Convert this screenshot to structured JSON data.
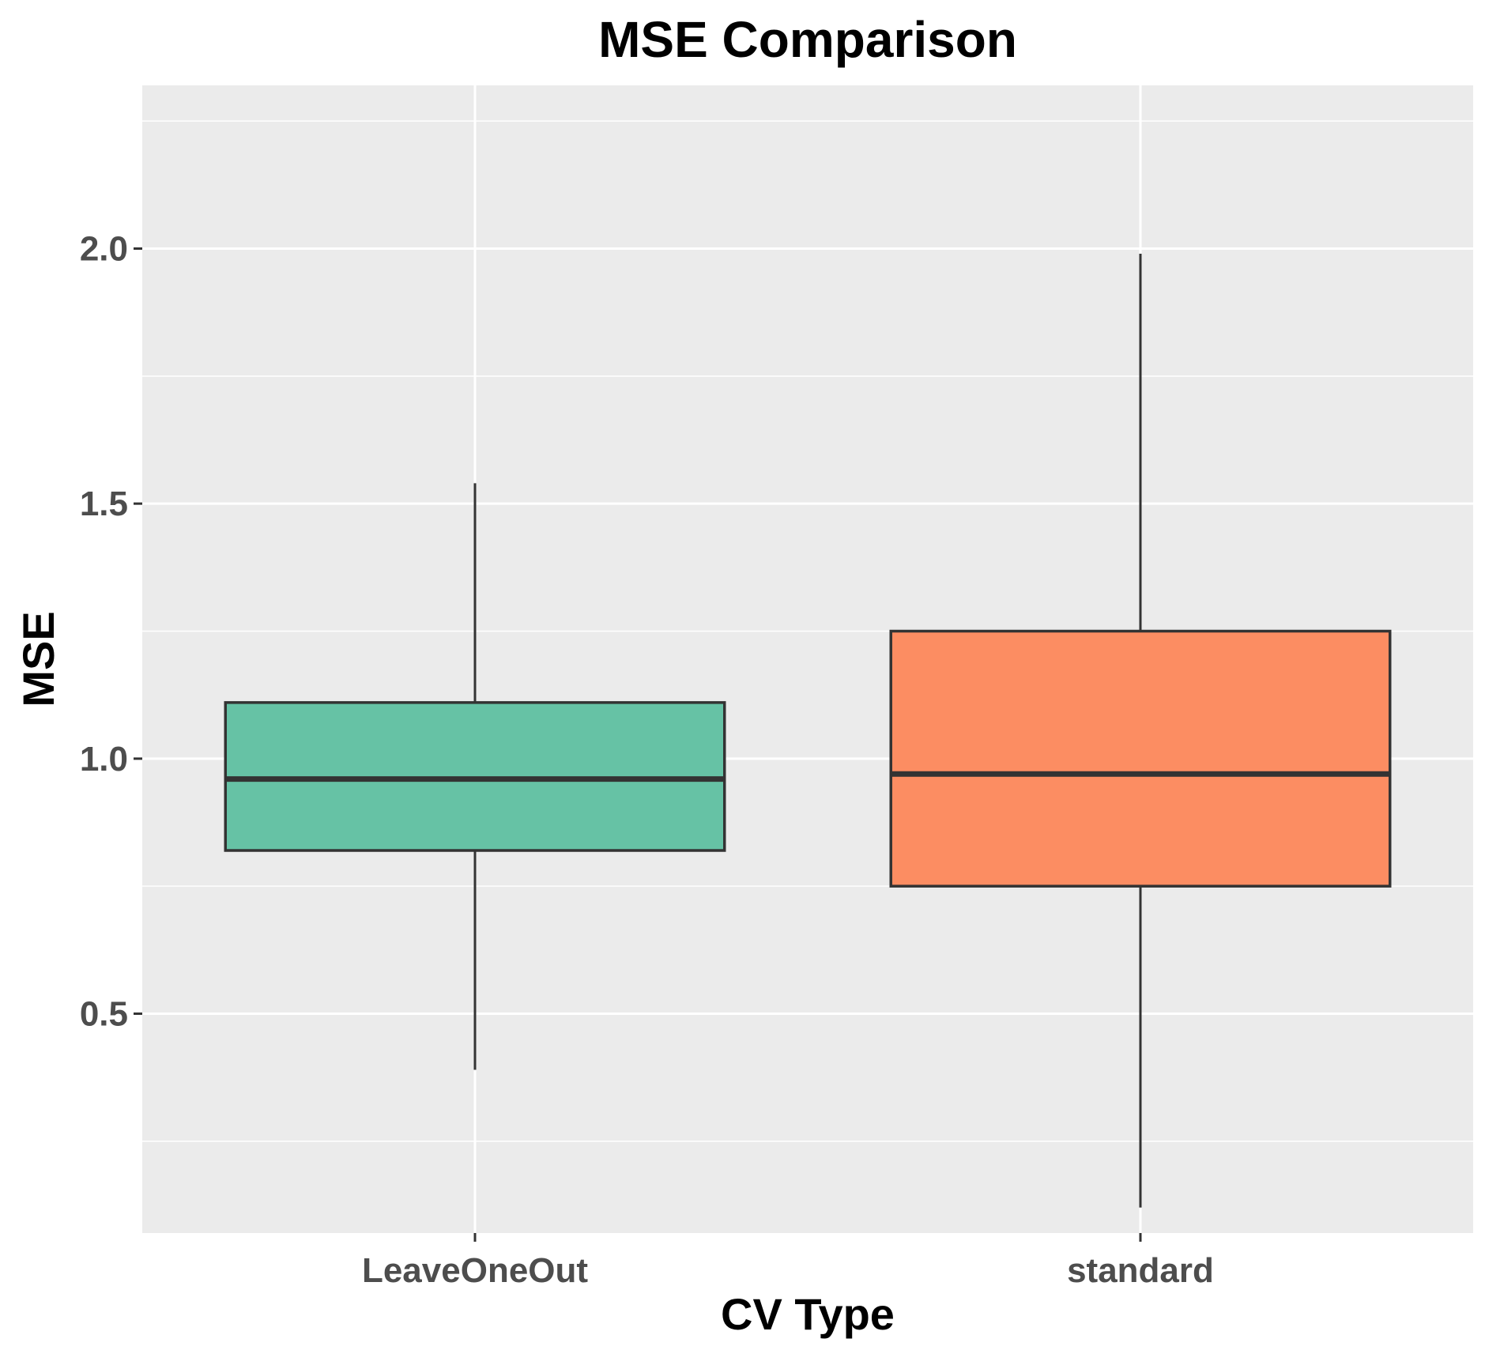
{
  "chart_data": {
    "type": "boxplot",
    "title": "MSE Comparison",
    "xlabel": "CV Type",
    "ylabel": "MSE",
    "ylim": [
      0.07,
      2.32
    ],
    "yticks": [
      0.5,
      1.0,
      1.5,
      2.0
    ],
    "ytick_labels": [
      "0.5",
      "1.0",
      "1.5",
      "2.0"
    ],
    "grid": true,
    "legend": "none",
    "categories": [
      "LeaveOneOut",
      "standard"
    ],
    "boxes": [
      {
        "category": "LeaveOneOut",
        "min": 0.39,
        "q1": 0.82,
        "median": 0.96,
        "q3": 1.11,
        "max": 1.54,
        "color": "#66c2a5"
      },
      {
        "category": "standard",
        "min": 0.12,
        "q1": 0.75,
        "median": 0.97,
        "q3": 1.25,
        "max": 1.99,
        "color": "#fc8d62"
      }
    ],
    "colors": {
      "panel": "#ebebeb",
      "grid": "#ffffff",
      "box_line": "#333333",
      "tick": "#333333"
    }
  }
}
